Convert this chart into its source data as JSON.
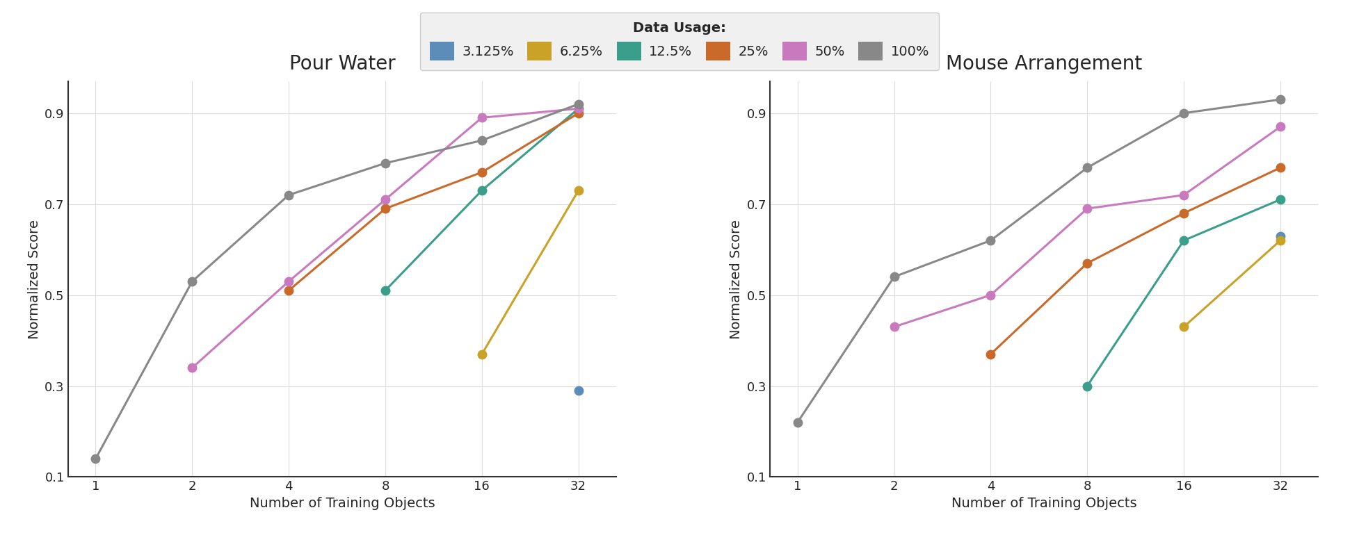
{
  "title_left": "Pour Water",
  "title_right": "Mouse Arrangement",
  "xlabel": "Number of Training Objects",
  "ylabel": "Normalized Score",
  "x_values": [
    1,
    2,
    4,
    8,
    16,
    32
  ],
  "legend_title": "Data Usage:",
  "series": [
    {
      "label": "3.125%",
      "color": "#5b8db8",
      "pour_water": [
        null,
        null,
        null,
        null,
        null,
        0.29
      ],
      "mouse_arrangement": [
        null,
        null,
        null,
        null,
        null,
        0.63
      ]
    },
    {
      "label": "6.25%",
      "color": "#c9a227",
      "pour_water": [
        null,
        null,
        null,
        null,
        0.37,
        0.73
      ],
      "mouse_arrangement": [
        null,
        null,
        null,
        null,
        0.43,
        0.62
      ]
    },
    {
      "label": "12.5%",
      "color": "#3a9e8a",
      "pour_water": [
        null,
        null,
        null,
        0.51,
        0.73,
        0.91
      ],
      "mouse_arrangement": [
        null,
        null,
        null,
        0.3,
        0.62,
        0.71
      ]
    },
    {
      "label": "25%",
      "color": "#c96a2b",
      "pour_water": [
        null,
        null,
        0.51,
        0.69,
        0.77,
        0.9
      ],
      "mouse_arrangement": [
        null,
        null,
        0.37,
        0.57,
        0.68,
        0.78
      ]
    },
    {
      "label": "50%",
      "color": "#c97abf",
      "pour_water": [
        null,
        0.34,
        0.53,
        0.71,
        0.89,
        0.91
      ],
      "mouse_arrangement": [
        null,
        0.43,
        0.5,
        0.69,
        0.72,
        0.87
      ]
    },
    {
      "label": "100%",
      "color": "#888888",
      "pour_water": [
        0.14,
        0.53,
        0.72,
        0.79,
        0.84,
        0.92
      ],
      "mouse_arrangement": [
        0.22,
        0.54,
        0.62,
        0.78,
        0.9,
        0.93
      ]
    }
  ],
  "ylim": [
    0.1,
    0.97
  ],
  "yticks": [
    0.1,
    0.3,
    0.5,
    0.7,
    0.9
  ],
  "background_color": "#ffffff",
  "grid_color": "#dddddd"
}
